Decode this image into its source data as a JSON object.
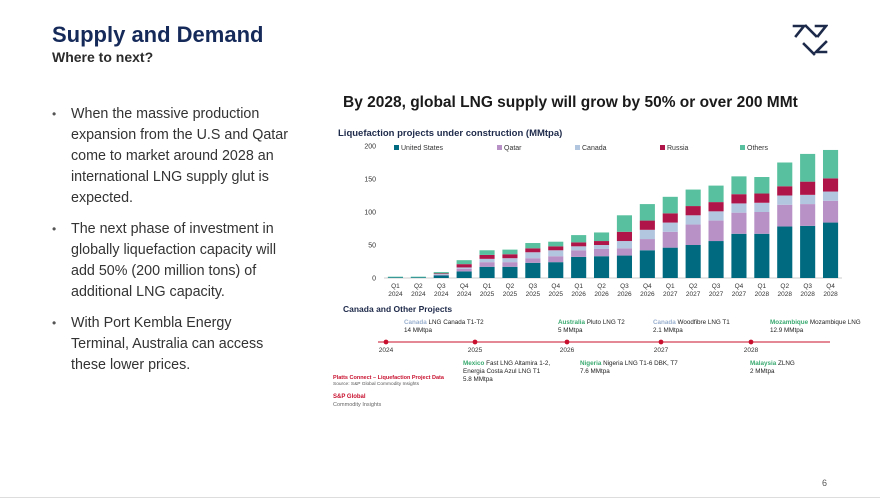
{
  "slide": {
    "title": "Supply and Demand",
    "subtitle": "Where to next?",
    "page_number": "6",
    "bullets": [
      "When the massive production expansion from the U.S and Qatar come to market around 2028 an international LNG supply glut is expected.",
      "The next phase of investment in globally liquefaction capacity will add 50% (200 million tons) of additional LNG capacity.",
      "With Port Kembla Energy Terminal, Australia can access these lower prices."
    ],
    "headline": "By 2028, global LNG supply will grow by 50% or over 200 MMt",
    "colors": {
      "title": "#162a5a",
      "logo": "#1e2a4a",
      "accent_red": "#c8102e"
    }
  },
  "chart_data": {
    "type": "bar",
    "stacked": true,
    "title": "Liquefaction projects under construction (MMtpa)",
    "ylim": [
      0,
      200
    ],
    "yticks": [
      0,
      50,
      100,
      150,
      200
    ],
    "legend_position": "top",
    "categories": [
      [
        "Q1",
        "2024"
      ],
      [
        "Q2",
        "2024"
      ],
      [
        "Q3",
        "2024"
      ],
      [
        "Q4",
        "2024"
      ],
      [
        "Q1",
        "2025"
      ],
      [
        "Q2",
        "2025"
      ],
      [
        "Q3",
        "2025"
      ],
      [
        "Q4",
        "2025"
      ],
      [
        "Q1",
        "2026"
      ],
      [
        "Q2",
        "2026"
      ],
      [
        "Q3",
        "2026"
      ],
      [
        "Q4",
        "2026"
      ],
      [
        "Q1",
        "2027"
      ],
      [
        "Q2",
        "2027"
      ],
      [
        "Q3",
        "2027"
      ],
      [
        "Q4",
        "2027"
      ],
      [
        "Q1",
        "2028"
      ],
      [
        "Q2",
        "2028"
      ],
      [
        "Q3",
        "2028"
      ],
      [
        "Q4",
        "2028"
      ]
    ],
    "series": [
      {
        "name": "United States",
        "color": "#006a80",
        "values": [
          1,
          1,
          4,
          10,
          17,
          17,
          23,
          24,
          32,
          33,
          34,
          42,
          46,
          50,
          56,
          67,
          67,
          78,
          79,
          84
        ]
      },
      {
        "name": "Qatar",
        "color": "#b892c6",
        "values": [
          0,
          0,
          1,
          4,
          7,
          7,
          7,
          9,
          10,
          11,
          11,
          17,
          24,
          31,
          31,
          32,
          33,
          33,
          33,
          33
        ]
      },
      {
        "name": "Canada",
        "color": "#b3c6e0",
        "values": [
          0,
          0,
          1,
          2,
          5,
          6,
          9,
          9,
          6,
          6,
          11,
          14,
          14,
          14,
          14,
          14,
          14,
          14,
          14,
          14
        ]
      },
      {
        "name": "Russia",
        "color": "#b0154a",
        "values": [
          0,
          0,
          1,
          5,
          6,
          6,
          6,
          6,
          6,
          6,
          14,
          14,
          14,
          14,
          14,
          14,
          14,
          14,
          20,
          20
        ]
      },
      {
        "name": "Others",
        "color": "#58c09e",
        "values": [
          1,
          1,
          2,
          6,
          7,
          7,
          8,
          7,
          11,
          13,
          25,
          25,
          25,
          25,
          25,
          27,
          25,
          36,
          42,
          43
        ]
      }
    ]
  },
  "timeline": {
    "title": "Canada and Other Projects",
    "years": [
      "2024",
      "2025",
      "2026",
      "2027",
      "2028"
    ],
    "projects_above": [
      {
        "country": "Canada",
        "name": "LNG Canada T1-T2",
        "capacity": "14 MMtpa"
      },
      {
        "country": "Australia",
        "name": "Pluto LNG T2",
        "capacity": "5 MMtpa"
      },
      {
        "country": "Canada",
        "name": "Woodfibre LNG T1",
        "capacity": "2.1 MMtpa"
      },
      {
        "country": "Mozambique",
        "name": "Mozambique LNG",
        "capacity": "12.9 MMtpa"
      }
    ],
    "projects_below": [
      {
        "country": "Mexico",
        "name": "Fast LNG Altamira 1-2,",
        "name2": "Energia Costa Azul LNG T1",
        "capacity": "5.8 MMtpa"
      },
      {
        "country": "Nigeria",
        "name": "Nigeria LNG T1-6 DBK, T7",
        "capacity": "7.6 MMtpa"
      },
      {
        "country": "Malaysia",
        "name": "ZLNG",
        "capacity": "2 MMtpa"
      }
    ],
    "country_colors": {
      "Canada": "#9ab0cf",
      "Australia": "#3aaa70",
      "Mozambique": "#3aaa70",
      "Mexico": "#3aaa70",
      "Nigeria": "#3aaa70",
      "Malaysia": "#3aaa70"
    },
    "line_color": "#c8102e"
  },
  "source": {
    "line1": "Platts Connect – Liquefaction Project Data",
    "line2": "Source: S&P Global Commodity Insights",
    "brand1": "S&P Global",
    "brand2": "Commodity Insights"
  }
}
